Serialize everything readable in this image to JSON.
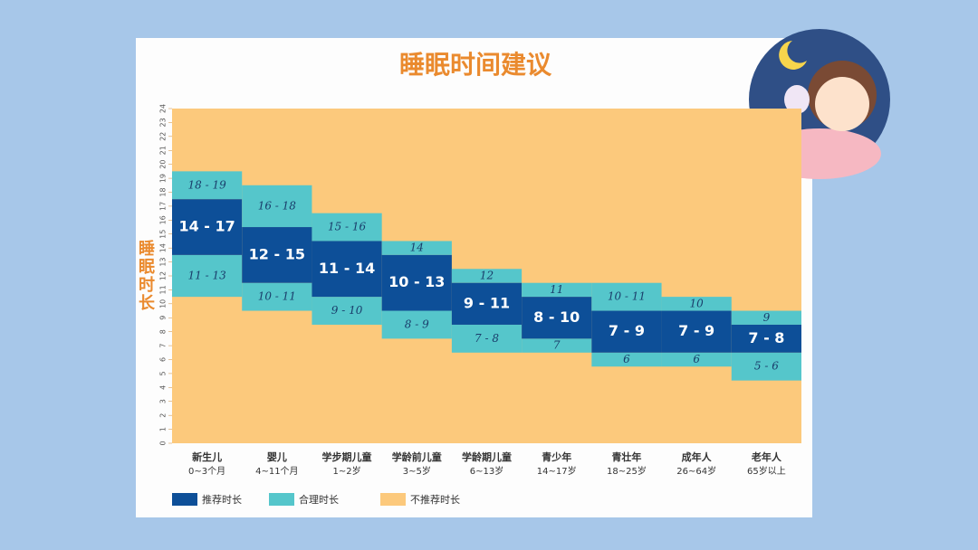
{
  "chart_data": {
    "type": "range",
    "title": "睡眠时间建议",
    "y_label": "睡眠时长",
    "categories": [
      "新生儿",
      "婴儿",
      "学步期儿童",
      "学龄前儿童",
      "学龄期儿童",
      "青少年",
      "青壮年",
      "成年人",
      "老年人"
    ],
    "category_sublabels": [
      "0~3个月",
      "4~11个月",
      "1~2岁",
      "3~5岁",
      "6~13岁",
      "14~17岁",
      "18~25岁",
      "26~64岁",
      "65岁以上"
    ],
    "ylim": [
      0,
      24
    ],
    "yticks": [
      0,
      1,
      2,
      3,
      4,
      5,
      6,
      7,
      8,
      9,
      10,
      11,
      12,
      13,
      14,
      15,
      16,
      17,
      18,
      19,
      20,
      21,
      22,
      23,
      24
    ],
    "background": {
      "name": "不推荐时长",
      "color": "#fcc97c"
    },
    "series": [
      {
        "name": "推荐时长",
        "color": "#0d4f98",
        "low": [
          14,
          12,
          11,
          10,
          9,
          8,
          7,
          7,
          7
        ],
        "high": [
          17,
          15,
          14,
          13,
          11,
          10,
          9,
          9,
          8
        ],
        "value_labels": [
          "14 - 17",
          "12 - 15",
          "11 - 14",
          "10 - 13",
          "9 - 11",
          "8 - 10",
          "7 - 9",
          "7 - 9",
          "7 - 8"
        ]
      },
      {
        "name": "合理时长",
        "color": "#55c6cb",
        "upper_low": [
          18,
          16,
          15,
          14,
          12,
          11,
          10,
          10,
          9
        ],
        "upper_high": [
          19,
          18,
          16,
          14,
          12,
          11,
          11,
          10,
          9
        ],
        "upper_labels": [
          "18 - 19",
          "16 - 18",
          "15 - 16",
          "14",
          "12",
          "11",
          "10 - 11",
          "10",
          "9"
        ],
        "lower_low": [
          11,
          10,
          9,
          8,
          7,
          7,
          6,
          6,
          5
        ],
        "lower_high": [
          13,
          11,
          10,
          9,
          8,
          7,
          6,
          6,
          6
        ],
        "lower_labels": [
          "11 - 13",
          "10 - 11",
          "9 - 10",
          "8 - 9",
          "7 - 8",
          "7",
          "6",
          "6",
          "5 - 6"
        ]
      }
    ]
  }
}
